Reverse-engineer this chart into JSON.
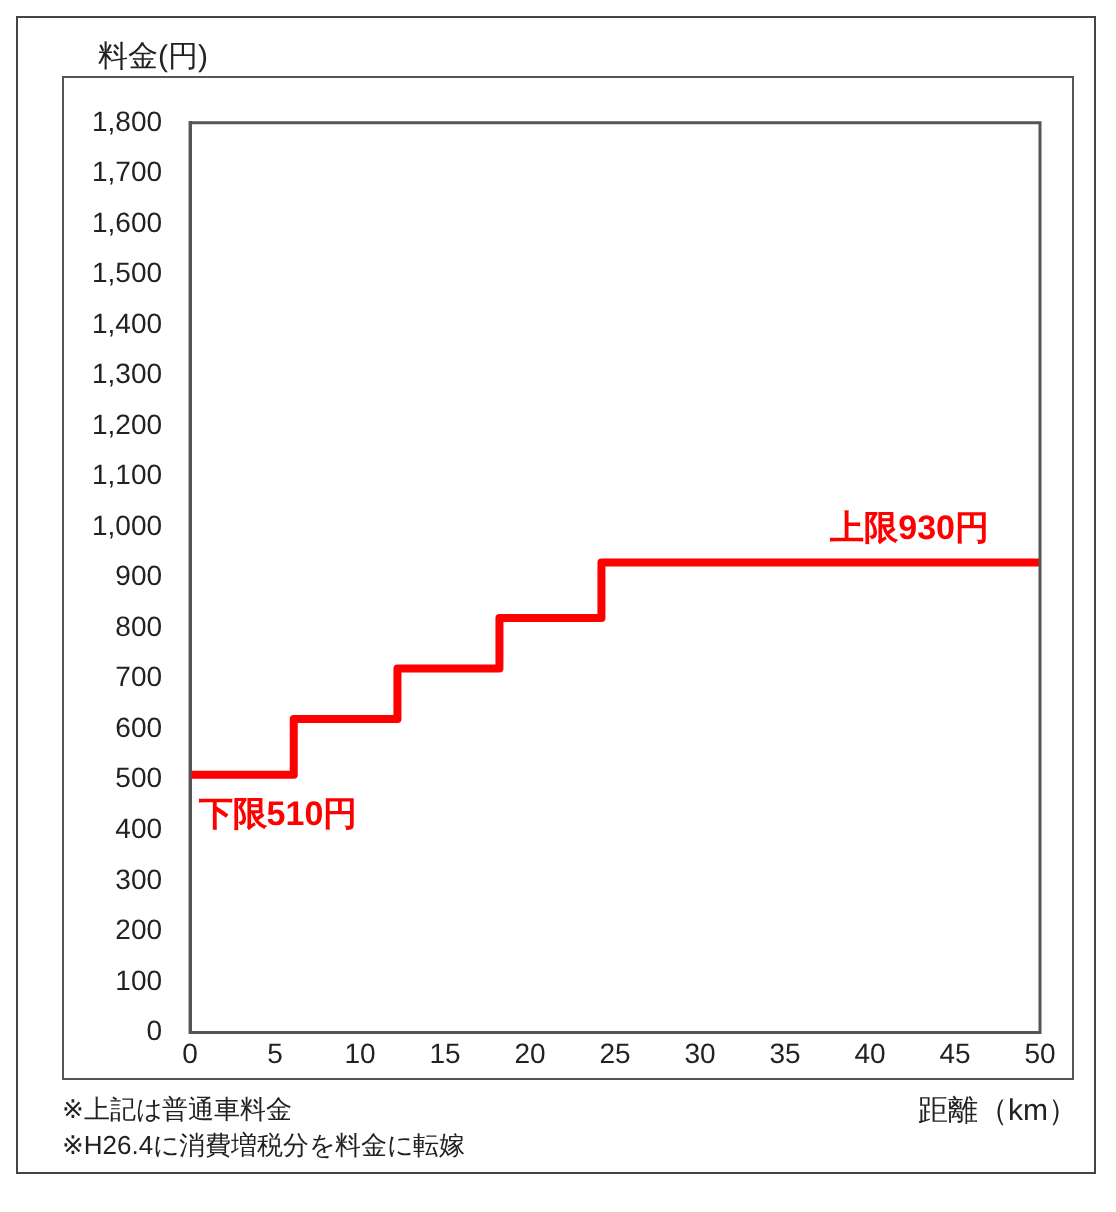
{
  "chart_data": {
    "type": "step",
    "ylabel": "料金(円)",
    "xlabel": "距離（km）",
    "x": [
      0,
      6.1,
      12.2,
      18.2,
      24.2,
      50
    ],
    "series": [
      {
        "color": "#ff0000",
        "values": [
          510,
          620,
          720,
          820,
          930,
          930
        ]
      }
    ],
    "xlim": [
      0,
      50
    ],
    "xticks": [
      0,
      5,
      10,
      15,
      20,
      25,
      30,
      35,
      40,
      45,
      50
    ],
    "ylim": [
      0,
      1800
    ],
    "yticks": [
      0,
      100,
      200,
      300,
      400,
      500,
      600,
      700,
      800,
      900,
      {
        "value": 1000,
        "label": "1,000"
      },
      {
        "value": 1100,
        "label": "1,100"
      },
      {
        "value": 1200,
        "label": "1,200"
      },
      {
        "value": 1300,
        "label": "1,300"
      },
      {
        "value": 1400,
        "label": "1,400"
      },
      {
        "value": 1500,
        "label": "1,500"
      },
      {
        "value": 1600,
        "label": "1,600"
      },
      {
        "value": 1700,
        "label": "1,700"
      },
      {
        "value": 1800,
        "label": "1,800"
      }
    ],
    "grid": false,
    "legend": false,
    "annotations": [
      {
        "text": "下限510円",
        "x": 0.5,
        "y": 510
      },
      {
        "text": "上限930円",
        "x": 47,
        "y": 930
      },
      "※上記は普通車料金",
      "※H26.4に消費増税分を料金に転嫁"
    ]
  }
}
